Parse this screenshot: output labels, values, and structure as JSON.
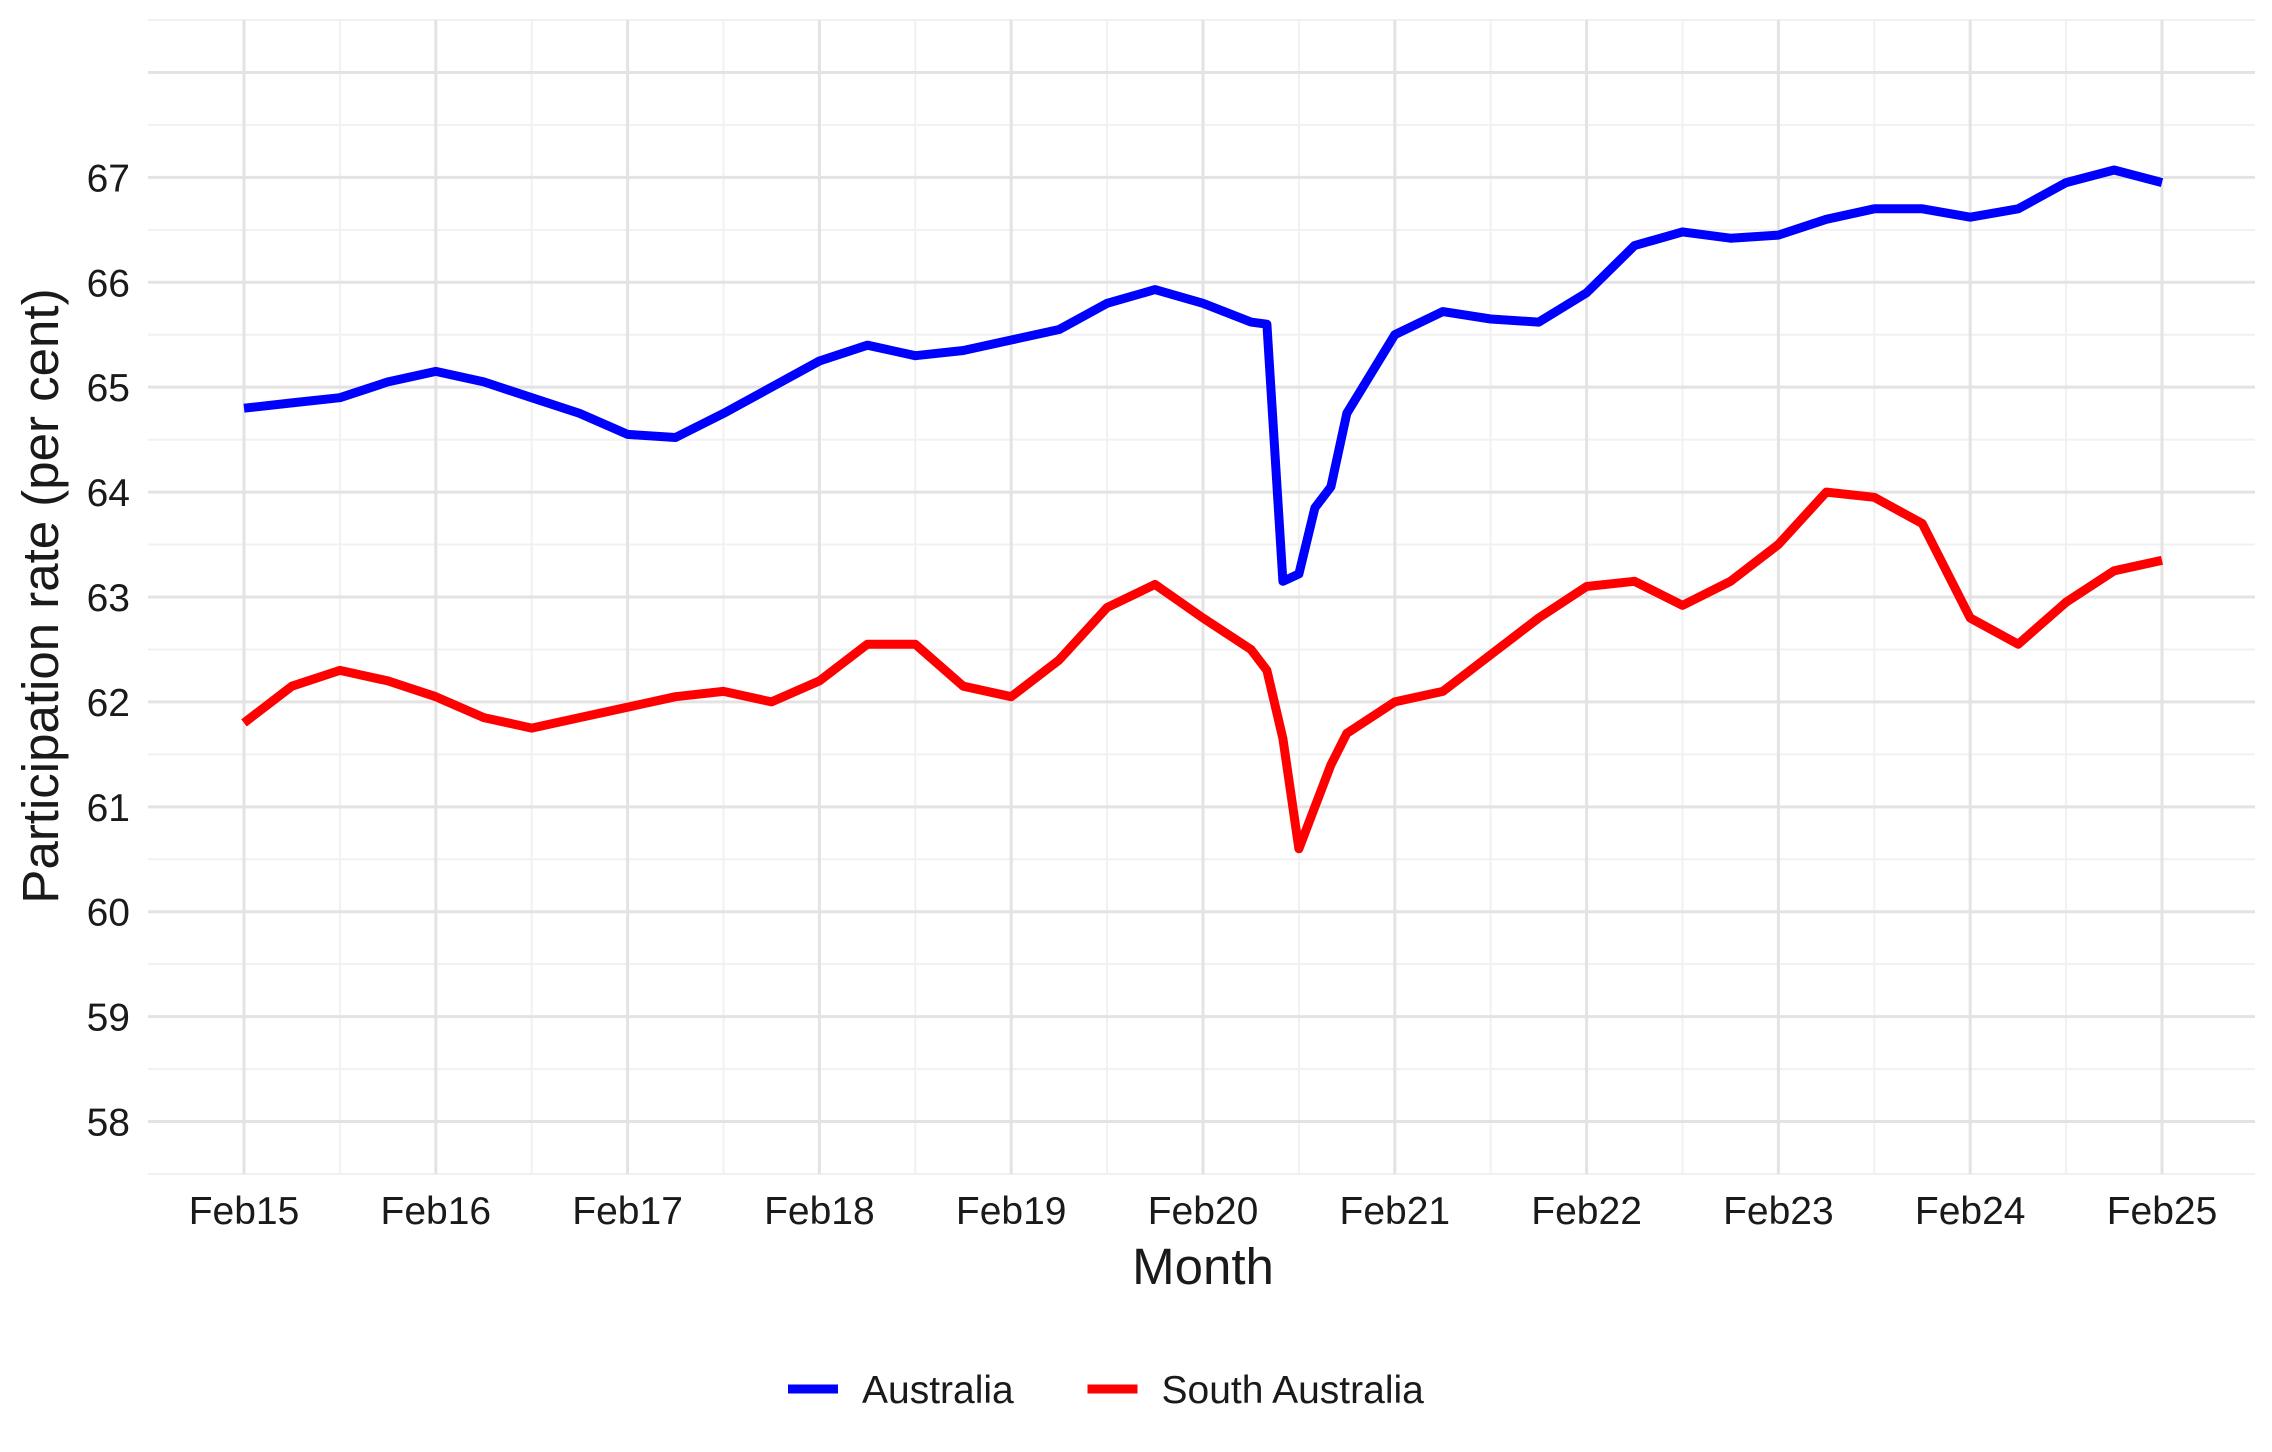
{
  "chart_data": {
    "type": "line",
    "title": "",
    "xlabel": "Month",
    "ylabel": "Participation rate (per cent)",
    "ylim": [
      57.5,
      68.5
    ],
    "yticks": [
      "58",
      "59",
      "60",
      "61",
      "62",
      "63",
      "64",
      "65",
      "66",
      "67"
    ],
    "xticks": [
      "Feb15",
      "Feb16",
      "Feb17",
      "Feb18",
      "Feb19",
      "Feb20",
      "Feb21",
      "Feb22",
      "Feb23",
      "Feb24",
      "Feb25"
    ],
    "x_start": "2015-02",
    "x_end": "2025-02",
    "grid": true,
    "legend_position": "bottom",
    "series": [
      {
        "name": "Australia",
        "color": "#0000ff",
        "points": [
          [
            "2015-02",
            64.8
          ],
          [
            "2015-05",
            64.85
          ],
          [
            "2015-08",
            64.9
          ],
          [
            "2015-11",
            65.05
          ],
          [
            "2016-02",
            65.15
          ],
          [
            "2016-05",
            65.05
          ],
          [
            "2016-08",
            64.9
          ],
          [
            "2016-11",
            64.75
          ],
          [
            "2017-02",
            64.55
          ],
          [
            "2017-05",
            64.52
          ],
          [
            "2017-08",
            64.75
          ],
          [
            "2017-11",
            65.0
          ],
          [
            "2018-02",
            65.25
          ],
          [
            "2018-05",
            65.4
          ],
          [
            "2018-08",
            65.3
          ],
          [
            "2018-11",
            65.35
          ],
          [
            "2019-02",
            65.45
          ],
          [
            "2019-05",
            65.55
          ],
          [
            "2019-08",
            65.8
          ],
          [
            "2019-11",
            65.93
          ],
          [
            "2020-02",
            65.8
          ],
          [
            "2020-05",
            65.62
          ],
          [
            "2020-06",
            65.6
          ],
          [
            "2020-07",
            63.15
          ],
          [
            "2020-08",
            63.22
          ],
          [
            "2020-09",
            63.85
          ],
          [
            "2020-10",
            64.05
          ],
          [
            "2020-11",
            64.75
          ],
          [
            "2021-02",
            65.5
          ],
          [
            "2021-05",
            65.72
          ],
          [
            "2021-08",
            65.65
          ],
          [
            "2021-11",
            65.62
          ],
          [
            "2022-02",
            65.9
          ],
          [
            "2022-05",
            66.35
          ],
          [
            "2022-08",
            66.48
          ],
          [
            "2022-11",
            66.42
          ],
          [
            "2023-02",
            66.45
          ],
          [
            "2023-05",
            66.6
          ],
          [
            "2023-08",
            66.7
          ],
          [
            "2023-11",
            66.7
          ],
          [
            "2024-02",
            66.62
          ],
          [
            "2024-05",
            66.7
          ],
          [
            "2024-08",
            66.95
          ],
          [
            "2024-11",
            67.07
          ],
          [
            "2025-02",
            66.95
          ]
        ]
      },
      {
        "name": "South Australia",
        "color": "#ff0000",
        "points": [
          [
            "2015-02",
            61.8
          ],
          [
            "2015-05",
            62.15
          ],
          [
            "2015-08",
            62.3
          ],
          [
            "2015-11",
            62.2
          ],
          [
            "2016-02",
            62.05
          ],
          [
            "2016-05",
            61.85
          ],
          [
            "2016-08",
            61.75
          ],
          [
            "2016-11",
            61.85
          ],
          [
            "2017-02",
            61.95
          ],
          [
            "2017-05",
            62.05
          ],
          [
            "2017-08",
            62.1
          ],
          [
            "2017-11",
            62.0
          ],
          [
            "2018-02",
            62.2
          ],
          [
            "2018-05",
            62.55
          ],
          [
            "2018-08",
            62.55
          ],
          [
            "2018-11",
            62.15
          ],
          [
            "2019-02",
            62.05
          ],
          [
            "2019-05",
            62.4
          ],
          [
            "2019-08",
            62.9
          ],
          [
            "2019-11",
            63.12
          ],
          [
            "2020-02",
            62.8
          ],
          [
            "2020-05",
            62.5
          ],
          [
            "2020-06",
            62.3
          ],
          [
            "2020-07",
            61.65
          ],
          [
            "2020-08",
            60.6
          ],
          [
            "2020-09",
            61.0
          ],
          [
            "2020-10",
            61.4
          ],
          [
            "2020-11",
            61.7
          ],
          [
            "2021-02",
            62.0
          ],
          [
            "2021-05",
            62.1
          ],
          [
            "2021-08",
            62.45
          ],
          [
            "2021-11",
            62.8
          ],
          [
            "2022-02",
            63.1
          ],
          [
            "2022-05",
            63.15
          ],
          [
            "2022-08",
            62.92
          ],
          [
            "2022-11",
            63.15
          ],
          [
            "2023-02",
            63.5
          ],
          [
            "2023-05",
            64.0
          ],
          [
            "2023-08",
            63.95
          ],
          [
            "2023-11",
            63.7
          ],
          [
            "2024-02",
            62.8
          ],
          [
            "2024-05",
            62.55
          ],
          [
            "2024-08",
            62.95
          ],
          [
            "2024-11",
            63.25
          ],
          [
            "2025-02",
            63.35
          ]
        ]
      }
    ]
  }
}
